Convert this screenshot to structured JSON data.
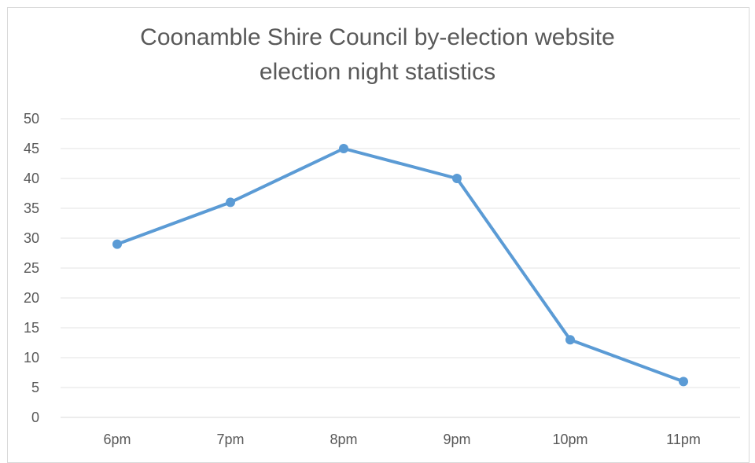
{
  "chart_data": {
    "type": "line",
    "title_lines": [
      "Coonamble Shire Council by-election website",
      "election night statistics"
    ],
    "categories": [
      "6pm",
      "7pm",
      "8pm",
      "9pm",
      "10pm",
      "11pm"
    ],
    "series": [
      {
        "values": [
          29,
          36,
          45,
          40,
          13,
          6
        ],
        "color": "#5b9bd5"
      }
    ],
    "y_ticks": [
      "0",
      "5",
      "10",
      "15",
      "20",
      "25",
      "30",
      "35",
      "40",
      "45",
      "50"
    ],
    "ylim": [
      0,
      50
    ],
    "grid": true,
    "legend": "none",
    "xlabel": "",
    "ylabel": ""
  }
}
